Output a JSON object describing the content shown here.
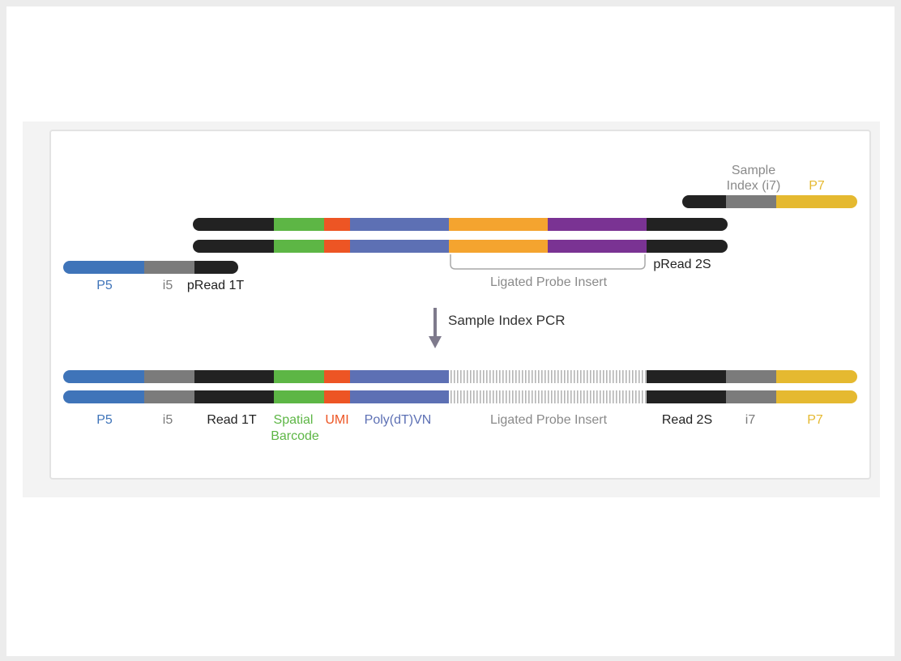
{
  "colors": {
    "blue": "#3f74b9",
    "gray": "#7b7b7b",
    "black": "#222222",
    "green": "#5db645",
    "orange": "#ed5524",
    "periwinkle": "#5d70b4",
    "amber": "#f4a42f",
    "purple": "#7a3393",
    "yellow": "#e5b930",
    "label_gray": "#8a8a8a",
    "arrow": "#7e7a8c"
  },
  "top": {
    "sample_index_line1": "Sample",
    "sample_index_line2": "Index (i7)",
    "p7": "P7",
    "p5": "P5",
    "i5": "i5",
    "pread1t": "pRead 1T",
    "pread2s": "pRead 2S",
    "ligated_probe_insert": "Ligated Probe Insert"
  },
  "step": {
    "label": "Sample Index PCR"
  },
  "bottom": {
    "p5": "P5",
    "i5": "i5",
    "read1t": "Read 1T",
    "spatial_line1": "Spatial",
    "spatial_line2": "Barcode",
    "umi": "UMI",
    "polydt": "Poly(dT)VN",
    "ligated_probe_insert": "Ligated Probe Insert",
    "read2s": "Read 2S",
    "i7": "i7",
    "p7": "P7"
  }
}
